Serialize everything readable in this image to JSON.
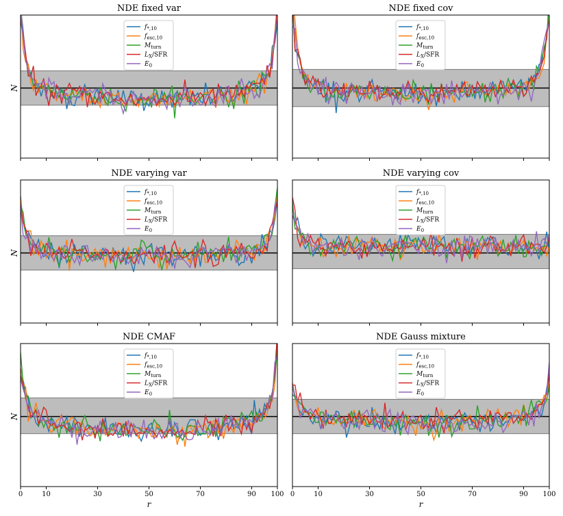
{
  "chart_data": {
    "type": "line",
    "grid": "2x3",
    "xlabel": "r",
    "ylabel": "N",
    "xlim": [
      0,
      100
    ],
    "ylim": [
      0,
      1
    ],
    "xticks": [
      0,
      10,
      30,
      50,
      70,
      90,
      100
    ],
    "band": [
      0.37,
      0.61
    ],
    "refline": 0.49,
    "legend": [
      {
        "sym": "f",
        "sub": "*,10",
        "color": "#1f77b4"
      },
      {
        "sym": "f",
        "sub": "esc,10",
        "color": "#ff7f0e"
      },
      {
        "sym": "M",
        "sub": "turn",
        "color": "#2ca02c"
      },
      {
        "sym": "L",
        "sub": "X",
        "suffix": "/SFR",
        "color": "#d62728"
      },
      {
        "sym": "E",
        "sub": "0",
        "color": "#9467bd"
      }
    ],
    "panels": [
      {
        "title": "NDE fixed var",
        "band": [
          0.37,
          0.61
        ],
        "refline": 0.49,
        "trend": {
          "center": 0.47,
          "dip": 0.06,
          "edgeL": 0.55,
          "edgeR": 0.55
        }
      },
      {
        "title": "NDE fixed cov",
        "band": [
          0.36,
          0.62
        ],
        "refline": 0.49,
        "trend": {
          "center": 0.48,
          "dip": 0.03,
          "edgeL": 0.6,
          "edgeR": 0.6
        }
      },
      {
        "title": "NDE varying var",
        "band": [
          0.37,
          0.61
        ],
        "refline": 0.49,
        "trend": {
          "center": 0.49,
          "dip": 0.02,
          "edgeL": 0.35,
          "edgeR": 0.4
        }
      },
      {
        "title": "NDE varying cov",
        "band": [
          0.38,
          0.62
        ],
        "refline": 0.49,
        "trend": {
          "center": 0.52,
          "dip": -0.02,
          "edgeL": 0.3,
          "edgeR": 0.05
        }
      },
      {
        "title": "NDE CMAF",
        "band": [
          0.37,
          0.62
        ],
        "refline": 0.49,
        "trend": {
          "center": 0.45,
          "dip": 0.06,
          "edgeL": 0.45,
          "edgeR": 0.5
        }
      },
      {
        "title": "NDE Gauss mixture",
        "band": [
          0.37,
          0.61
        ],
        "refline": 0.49,
        "trend": {
          "center": 0.48,
          "dip": 0.03,
          "edgeL": 0.25,
          "edgeR": 0.3
        }
      }
    ]
  }
}
